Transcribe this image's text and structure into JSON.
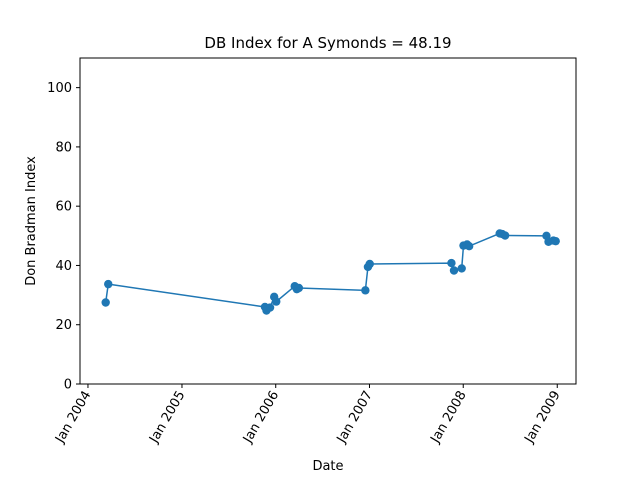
{
  "chart_data": {
    "type": "line",
    "title": "DB Index for A Symonds = 48.19",
    "xlabel": "Date",
    "ylabel": "Don Bradman Index",
    "xlim": [
      "2003-12-01",
      "2009-03-15"
    ],
    "ylim": [
      0,
      110
    ],
    "yticks": [
      0,
      20,
      40,
      60,
      80,
      100
    ],
    "xticks": [
      {
        "date": "2004-01-01",
        "label": "Jan 2004"
      },
      {
        "date": "2005-01-01",
        "label": "Jan 2005"
      },
      {
        "date": "2006-01-01",
        "label": "Jan 2006"
      },
      {
        "date": "2007-01-01",
        "label": "Jan 2007"
      },
      {
        "date": "2008-01-01",
        "label": "Jan 2008"
      },
      {
        "date": "2009-01-01",
        "label": "Jan 2009"
      }
    ],
    "grid": false,
    "color": "#1f77b4",
    "series": [
      {
        "points": [
          {
            "x": "2004-03-10",
            "y": 27.5
          },
          {
            "x": "2004-03-20",
            "y": 33.7
          },
          {
            "x": "2005-11-20",
            "y": 26.0
          },
          {
            "x": "2005-11-26",
            "y": 24.8
          },
          {
            "x": "2005-12-10",
            "y": 25.8
          },
          {
            "x": "2005-12-26",
            "y": 29.4
          },
          {
            "x": "2006-01-03",
            "y": 27.8
          },
          {
            "x": "2006-03-16",
            "y": 33.0
          },
          {
            "x": "2006-03-24",
            "y": 32.0
          },
          {
            "x": "2006-04-01",
            "y": 32.4
          },
          {
            "x": "2006-12-16",
            "y": 31.6
          },
          {
            "x": "2006-12-26",
            "y": 39.5
          },
          {
            "x": "2007-01-02",
            "y": 40.5
          },
          {
            "x": "2007-11-16",
            "y": 40.8
          },
          {
            "x": "2007-11-26",
            "y": 38.3
          },
          {
            "x": "2007-12-26",
            "y": 39.0
          },
          {
            "x": "2008-01-02",
            "y": 46.7
          },
          {
            "x": "2008-01-16",
            "y": 47.1
          },
          {
            "x": "2008-01-24",
            "y": 46.5
          },
          {
            "x": "2008-05-22",
            "y": 50.8
          },
          {
            "x": "2008-06-01",
            "y": 50.6
          },
          {
            "x": "2008-06-12",
            "y": 50.1
          },
          {
            "x": "2008-11-20",
            "y": 50.0
          },
          {
            "x": "2008-11-28",
            "y": 48.0
          },
          {
            "x": "2008-12-17",
            "y": 48.4
          },
          {
            "x": "2008-12-26",
            "y": 48.19
          }
        ]
      }
    ]
  }
}
